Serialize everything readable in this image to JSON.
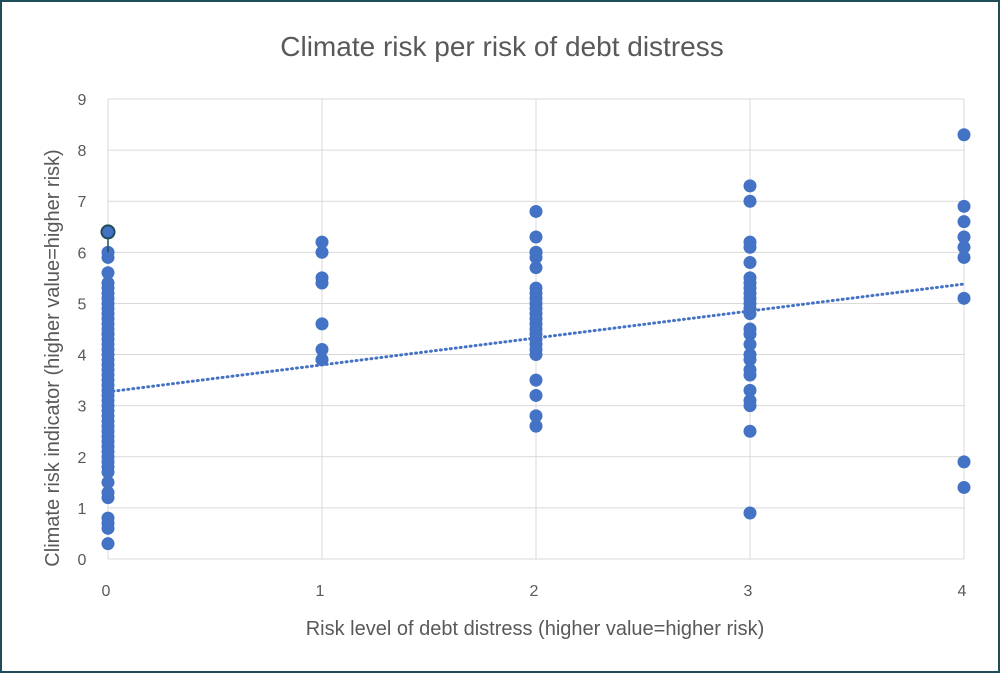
{
  "chart_data": {
    "type": "scatter",
    "title": "Climate risk per risk of debt distress",
    "xlabel": "Risk level of debt distress (higher value=higher risk)",
    "ylabel": "Climate risk indicator (higher value=higher risk)",
    "xlim": [
      0,
      4
    ],
    "ylim": [
      0,
      9
    ],
    "xticks": [
      "0",
      "1",
      "2",
      "3",
      "4"
    ],
    "yticks": [
      "0",
      "1",
      "2",
      "3",
      "4",
      "5",
      "6",
      "7",
      "8",
      "9"
    ],
    "grid": true,
    "legend": "none",
    "marker_color": "#4472c4",
    "highlight_color": "#1f4e5a",
    "series": [
      {
        "x": [
          0,
          0,
          0,
          0,
          0,
          0,
          0,
          0,
          0,
          0,
          0,
          0,
          0,
          0,
          0,
          0,
          0,
          0,
          0,
          0,
          0,
          0,
          0,
          0,
          0,
          0,
          0,
          0,
          0,
          0,
          0,
          0,
          0,
          0,
          0,
          0,
          0,
          0,
          0,
          0,
          0,
          0,
          0,
          0,
          0,
          0,
          0,
          0,
          0,
          0,
          1,
          1,
          1,
          1,
          1,
          1,
          1,
          1,
          2,
          2,
          2,
          2,
          2,
          2,
          2,
          2,
          2,
          2,
          2,
          2,
          2,
          2,
          2,
          2,
          2,
          2,
          2,
          2,
          2,
          2,
          2,
          2,
          3,
          3,
          3,
          3,
          3,
          3,
          3,
          3,
          3,
          3,
          3,
          3,
          3,
          3,
          3,
          3,
          3,
          3,
          3,
          3,
          3,
          3,
          3,
          3,
          3,
          4,
          4,
          4,
          4,
          4,
          4,
          4,
          4,
          4
        ],
        "y": [
          6.4,
          6.0,
          5.9,
          5.4,
          5.3,
          5.2,
          5.1,
          5.0,
          4.9,
          4.8,
          4.7,
          4.6,
          4.5,
          4.4,
          4.3,
          4.2,
          4.1,
          4.0,
          3.9,
          3.8,
          3.7,
          3.6,
          3.5,
          3.4,
          3.3,
          3.2,
          3.1,
          3.0,
          2.9,
          2.8,
          2.7,
          2.6,
          2.5,
          2.4,
          2.3,
          2.2,
          2.1,
          2.0,
          1.9,
          1.8,
          1.7,
          1.5,
          1.3,
          1.2,
          0.8,
          0.7,
          0.6,
          0.3,
          5.6,
          4.4,
          6.2,
          6.0,
          5.5,
          5.4,
          4.6,
          4.1,
          3.9,
          3.9,
          6.8,
          6.3,
          6.0,
          5.9,
          5.7,
          5.3,
          5.2,
          5.0,
          4.8,
          4.6,
          4.5,
          4.4,
          4.3,
          4.2,
          4.1,
          4.0,
          3.5,
          3.2,
          2.8,
          2.6,
          5.1,
          4.9,
          4.7,
          6.0,
          7.3,
          7.0,
          6.2,
          6.1,
          5.8,
          5.5,
          5.3,
          5.2,
          5.1,
          5.0,
          4.9,
          4.5,
          4.4,
          4.2,
          4.0,
          3.9,
          3.7,
          3.6,
          3.3,
          3.1,
          3.0,
          2.5,
          0.9,
          5.4,
          4.8,
          8.3,
          6.9,
          6.6,
          6.3,
          6.1,
          5.9,
          5.1,
          1.9,
          1.4
        ]
      }
    ],
    "trendline": {
      "type": "linear",
      "style": "dotted",
      "from": [
        0,
        3.27
      ],
      "to": [
        4,
        5.38
      ]
    },
    "highlight": {
      "x": 0,
      "y": 6.4,
      "line_to_y": 6.0
    }
  }
}
